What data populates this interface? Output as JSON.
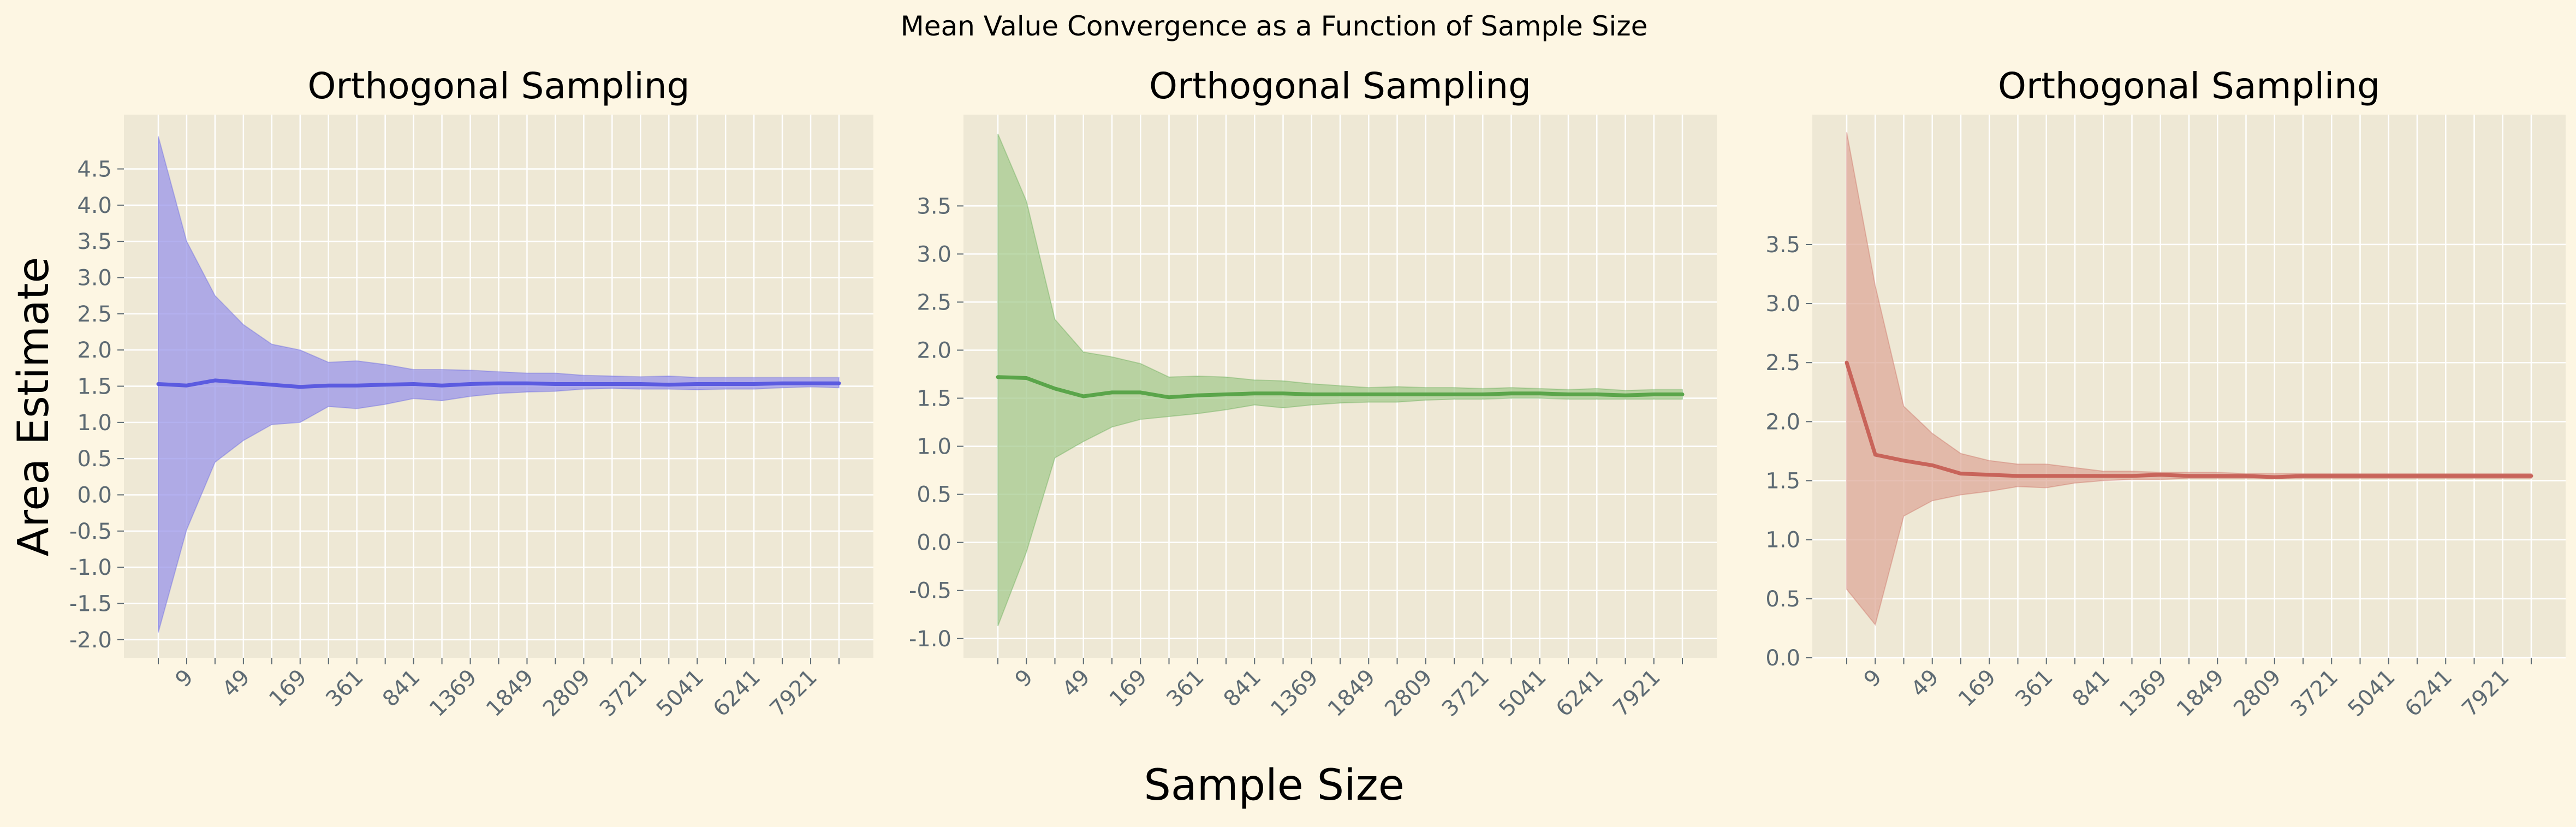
{
  "figure": {
    "suptitle": "Mean Value Convergence as a Function of Sample Size",
    "shared_xlabel": "Sample Size",
    "shared_ylabel": "Area Estimate",
    "background": "#fdf6e3",
    "panel_background": "#eee8d5",
    "grid_color": "#ffffff"
  },
  "chart_data": [
    {
      "type": "line",
      "title": "Orthogonal Sampling",
      "xlabel": "Sample Size",
      "ylabel": "Area Estimate",
      "color": "#5b5be0",
      "fill_color": "#9a96ea",
      "grid": true,
      "ylim": [
        -2.25,
        5.25
      ],
      "yticks": [
        "-2.0",
        "-1.5",
        "-1.0",
        "-0.5",
        "0.0",
        "0.5",
        "1.0",
        "1.5",
        "2.0",
        "2.5",
        "3.0",
        "3.5",
        "4.0",
        "4.5"
      ],
      "ytick_values": [
        -2.0,
        -1.5,
        -1.0,
        -0.5,
        0.0,
        0.5,
        1.0,
        1.5,
        2.0,
        2.5,
        3.0,
        3.5,
        4.0,
        4.5
      ],
      "xtick_labels": [
        "9",
        "49",
        "169",
        "361",
        "841",
        "1369",
        "1849",
        "2809",
        "3721",
        "5041",
        "6241",
        "7921"
      ],
      "series": [
        {
          "name": "mean",
          "values": [
            1.53,
            1.51,
            1.58,
            1.55,
            1.52,
            1.49,
            1.51,
            1.51,
            1.52,
            1.53,
            1.51,
            1.53,
            1.54,
            1.54,
            1.53,
            1.53,
            1.53,
            1.53,
            1.52,
            1.53,
            1.53,
            1.53,
            1.54,
            1.54,
            1.54
          ]
        },
        {
          "name": "upper",
          "values": [
            4.95,
            3.5,
            2.75,
            2.35,
            2.08,
            2.0,
            1.83,
            1.85,
            1.8,
            1.73,
            1.73,
            1.72,
            1.7,
            1.68,
            1.68,
            1.65,
            1.64,
            1.63,
            1.64,
            1.62,
            1.62,
            1.62,
            1.62,
            1.62,
            1.62
          ]
        },
        {
          "name": "lower",
          "values": [
            -1.9,
            -0.48,
            0.45,
            0.75,
            0.97,
            1.0,
            1.22,
            1.19,
            1.25,
            1.33,
            1.3,
            1.36,
            1.4,
            1.42,
            1.43,
            1.46,
            1.47,
            1.46,
            1.46,
            1.45,
            1.46,
            1.46,
            1.48,
            1.49,
            1.48
          ]
        }
      ]
    },
    {
      "type": "line",
      "title": "Orthogonal Sampling",
      "xlabel": "Sample Size",
      "ylabel": "Area Estimate",
      "color": "#5aa54a",
      "fill_color": "#a5cb8f",
      "grid": true,
      "ylim": [
        -1.2,
        4.45
      ],
      "yticks": [
        "-1.0",
        "-0.5",
        "0.0",
        "0.5",
        "1.0",
        "1.5",
        "2.0",
        "2.5",
        "3.0",
        "3.5"
      ],
      "ytick_values": [
        -1.0,
        -0.5,
        0.0,
        0.5,
        1.0,
        1.5,
        2.0,
        2.5,
        3.0,
        3.5
      ],
      "xtick_labels": [
        "9",
        "49",
        "169",
        "361",
        "841",
        "1369",
        "1849",
        "2809",
        "3721",
        "5041",
        "6241",
        "7921"
      ],
      "series": [
        {
          "name": "mean",
          "values": [
            1.72,
            1.71,
            1.6,
            1.52,
            1.56,
            1.56,
            1.51,
            1.53,
            1.54,
            1.55,
            1.55,
            1.54,
            1.54,
            1.54,
            1.54,
            1.54,
            1.54,
            1.54,
            1.55,
            1.55,
            1.54,
            1.54,
            1.53,
            1.54,
            1.54
          ]
        },
        {
          "name": "upper",
          "values": [
            4.25,
            3.55,
            2.32,
            1.98,
            1.93,
            1.86,
            1.72,
            1.73,
            1.72,
            1.69,
            1.68,
            1.65,
            1.63,
            1.61,
            1.62,
            1.61,
            1.61,
            1.6,
            1.61,
            1.6,
            1.59,
            1.6,
            1.58,
            1.59,
            1.59
          ]
        },
        {
          "name": "lower",
          "values": [
            -0.87,
            -0.1,
            0.88,
            1.05,
            1.2,
            1.28,
            1.31,
            1.34,
            1.38,
            1.43,
            1.4,
            1.43,
            1.45,
            1.46,
            1.46,
            1.48,
            1.49,
            1.49,
            1.5,
            1.5,
            1.49,
            1.49,
            1.49,
            1.49,
            1.49
          ]
        }
      ]
    },
    {
      "type": "line",
      "title": "Orthogonal Sampling",
      "xlabel": "Sample Size",
      "ylabel": "Area Estimate",
      "color": "#c8645a",
      "fill_color": "#deaa9a",
      "grid": true,
      "ylim": [
        0.0,
        4.6
      ],
      "yticks": [
        "0.0",
        "0.5",
        "1.0",
        "1.5",
        "2.0",
        "2.5",
        "3.0",
        "3.5"
      ],
      "ytick_values": [
        0.0,
        0.5,
        1.0,
        1.5,
        2.0,
        2.5,
        3.0,
        3.5
      ],
      "xtick_labels": [
        "9",
        "49",
        "169",
        "361",
        "841",
        "1369",
        "1849",
        "2809",
        "3721",
        "5041",
        "6241",
        "7921"
      ],
      "series": [
        {
          "name": "mean",
          "values": [
            2.5,
            1.72,
            1.67,
            1.63,
            1.56,
            1.55,
            1.54,
            1.54,
            1.54,
            1.54,
            1.54,
            1.55,
            1.54,
            1.54,
            1.54,
            1.53,
            1.54,
            1.54,
            1.54,
            1.54,
            1.54,
            1.54,
            1.54,
            1.54,
            1.54
          ]
        },
        {
          "name": "upper",
          "values": [
            4.45,
            3.15,
            2.13,
            1.9,
            1.73,
            1.67,
            1.64,
            1.64,
            1.61,
            1.58,
            1.58,
            1.57,
            1.57,
            1.57,
            1.56,
            1.56,
            1.56,
            1.56,
            1.56,
            1.56,
            1.56,
            1.56,
            1.56,
            1.56,
            1.56
          ]
        },
        {
          "name": "lower",
          "values": [
            0.58,
            0.28,
            1.2,
            1.33,
            1.38,
            1.41,
            1.45,
            1.44,
            1.48,
            1.5,
            1.51,
            1.51,
            1.52,
            1.52,
            1.52,
            1.52,
            1.52,
            1.52,
            1.52,
            1.52,
            1.52,
            1.52,
            1.52,
            1.52,
            1.52
          ]
        }
      ]
    }
  ]
}
